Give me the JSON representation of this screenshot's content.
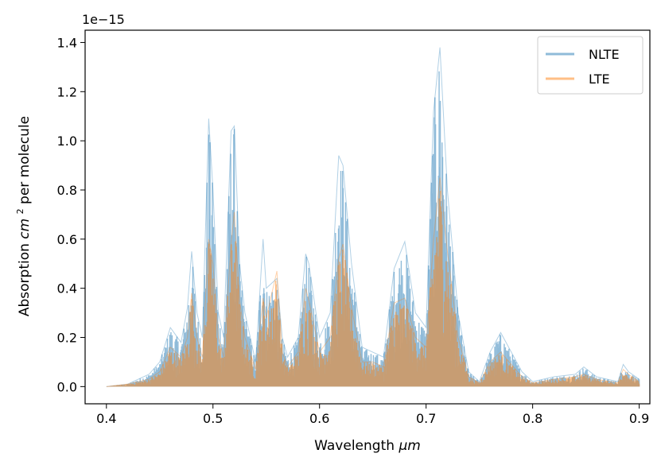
{
  "chart_data": {
    "type": "line",
    "title": "",
    "xlabel": "Wavelength",
    "xlabel_unit": "μm",
    "ylabel_prefix": "Absorption ",
    "ylabel_unit_base": "cm",
    "ylabel_unit_exp": "2",
    "ylabel_suffix": " per molecule",
    "y_offset_text": "1e−15",
    "xlim": [
      0.38,
      0.91
    ],
    "ylim": [
      -0.07,
      1.45
    ],
    "x_ticks": [
      0.4,
      0.5,
      0.6,
      0.7,
      0.8,
      0.9
    ],
    "x_tick_labels": [
      "0.4",
      "0.5",
      "0.6",
      "0.7",
      "0.8",
      "0.9"
    ],
    "y_ticks": [
      0.0,
      0.2,
      0.4,
      0.6,
      0.8,
      1.0,
      1.2,
      1.4
    ],
    "y_tick_labels": [
      "0.0",
      "0.2",
      "0.4",
      "0.6",
      "0.8",
      "1.0",
      "1.2",
      "1.4"
    ],
    "grid": false,
    "legend_position": "top-right",
    "series": [
      {
        "name": "NLTE",
        "color": "#1f77b4",
        "envelope": [
          [
            0.4,
            0.0
          ],
          [
            0.42,
            0.01
          ],
          [
            0.44,
            0.05
          ],
          [
            0.45,
            0.1
          ],
          [
            0.46,
            0.24
          ],
          [
            0.47,
            0.18
          ],
          [
            0.476,
            0.32
          ],
          [
            0.48,
            0.55
          ],
          [
            0.485,
            0.3
          ],
          [
            0.49,
            0.2
          ],
          [
            0.496,
            1.09
          ],
          [
            0.5,
            0.8
          ],
          [
            0.505,
            0.3
          ],
          [
            0.51,
            0.2
          ],
          [
            0.517,
            1.04
          ],
          [
            0.52,
            1.06
          ],
          [
            0.525,
            0.5
          ],
          [
            0.53,
            0.3
          ],
          [
            0.54,
            0.1
          ],
          [
            0.547,
            0.6
          ],
          [
            0.55,
            0.4
          ],
          [
            0.56,
            0.44
          ],
          [
            0.565,
            0.2
          ],
          [
            0.57,
            0.12
          ],
          [
            0.58,
            0.2
          ],
          [
            0.587,
            0.54
          ],
          [
            0.59,
            0.5
          ],
          [
            0.6,
            0.2
          ],
          [
            0.61,
            0.3
          ],
          [
            0.618,
            0.94
          ],
          [
            0.622,
            0.9
          ],
          [
            0.63,
            0.5
          ],
          [
            0.64,
            0.16
          ],
          [
            0.65,
            0.14
          ],
          [
            0.66,
            0.12
          ],
          [
            0.67,
            0.48
          ],
          [
            0.68,
            0.59
          ],
          [
            0.69,
            0.3
          ],
          [
            0.7,
            0.24
          ],
          [
            0.707,
            1.12
          ],
          [
            0.713,
            1.38
          ],
          [
            0.72,
            0.8
          ],
          [
            0.73,
            0.3
          ],
          [
            0.74,
            0.06
          ],
          [
            0.75,
            0.02
          ],
          [
            0.76,
            0.14
          ],
          [
            0.77,
            0.22
          ],
          [
            0.78,
            0.14
          ],
          [
            0.79,
            0.06
          ],
          [
            0.8,
            0.02
          ],
          [
            0.82,
            0.04
          ],
          [
            0.84,
            0.05
          ],
          [
            0.848,
            0.08
          ],
          [
            0.86,
            0.04
          ],
          [
            0.88,
            0.02
          ],
          [
            0.885,
            0.09
          ],
          [
            0.89,
            0.06
          ],
          [
            0.9,
            0.03
          ]
        ]
      },
      {
        "name": "LTE",
        "color": "#ff7f0e",
        "envelope": [
          [
            0.4,
            0.0
          ],
          [
            0.42,
            0.01
          ],
          [
            0.44,
            0.03
          ],
          [
            0.45,
            0.06
          ],
          [
            0.46,
            0.16
          ],
          [
            0.47,
            0.12
          ],
          [
            0.476,
            0.2
          ],
          [
            0.48,
            0.38
          ],
          [
            0.485,
            0.2
          ],
          [
            0.49,
            0.12
          ],
          [
            0.496,
            0.6
          ],
          [
            0.5,
            0.5
          ],
          [
            0.505,
            0.2
          ],
          [
            0.51,
            0.12
          ],
          [
            0.517,
            0.58
          ],
          [
            0.52,
            0.71
          ],
          [
            0.525,
            0.35
          ],
          [
            0.53,
            0.2
          ],
          [
            0.54,
            0.07
          ],
          [
            0.547,
            0.36
          ],
          [
            0.55,
            0.28
          ],
          [
            0.56,
            0.47
          ],
          [
            0.565,
            0.14
          ],
          [
            0.57,
            0.08
          ],
          [
            0.58,
            0.14
          ],
          [
            0.587,
            0.4
          ],
          [
            0.59,
            0.35
          ],
          [
            0.6,
            0.14
          ],
          [
            0.61,
            0.2
          ],
          [
            0.618,
            0.52
          ],
          [
            0.622,
            0.58
          ],
          [
            0.63,
            0.32
          ],
          [
            0.64,
            0.1
          ],
          [
            0.65,
            0.1
          ],
          [
            0.66,
            0.08
          ],
          [
            0.67,
            0.34
          ],
          [
            0.68,
            0.36
          ],
          [
            0.69,
            0.2
          ],
          [
            0.7,
            0.16
          ],
          [
            0.707,
            0.6
          ],
          [
            0.713,
            0.85
          ],
          [
            0.72,
            0.55
          ],
          [
            0.73,
            0.2
          ],
          [
            0.74,
            0.04
          ],
          [
            0.75,
            0.015
          ],
          [
            0.76,
            0.1
          ],
          [
            0.77,
            0.14
          ],
          [
            0.78,
            0.09
          ],
          [
            0.79,
            0.04
          ],
          [
            0.8,
            0.015
          ],
          [
            0.82,
            0.03
          ],
          [
            0.84,
            0.04
          ],
          [
            0.848,
            0.05
          ],
          [
            0.86,
            0.03
          ],
          [
            0.88,
            0.015
          ],
          [
            0.885,
            0.07
          ],
          [
            0.89,
            0.05
          ],
          [
            0.9,
            0.02
          ]
        ]
      }
    ]
  }
}
